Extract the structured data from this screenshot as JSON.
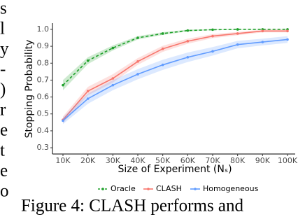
{
  "margin_fragments": [
    "s",
    "l",
    "y",
    "-",
    ")",
    "r",
    "e",
    "t",
    "e",
    "o"
  ],
  "caption": "Figure 4:  CLASH performs and",
  "chart_data": {
    "type": "line",
    "xlabel": "Size of Experiment (Nₛ)",
    "ylabel": "Stopping Probability",
    "categories": [
      "10K",
      "20K",
      "30K",
      "40K",
      "50K",
      "60K",
      "70K",
      "80K",
      "90K",
      "100K"
    ],
    "ylim": [
      0.263,
      1.037
    ],
    "yticks": [
      0.3,
      0.4,
      0.5,
      0.6,
      0.7,
      0.8,
      0.9,
      {
        "value": 1,
        "label": "1.0"
      }
    ],
    "legend": "bottom",
    "series": [
      {
        "name": "Oracle",
        "color": "#1ea02a",
        "dashed": true,
        "values": [
          0.67,
          0.815,
          0.89,
          0.95,
          0.975,
          0.993,
          0.998,
          1.0,
          1.0,
          1.0
        ],
        "ci": [
          0.03,
          0.02,
          0.015,
          0.01,
          0.008,
          0.005,
          0.003,
          0.002,
          0.002,
          0.002
        ]
      },
      {
        "name": "CLASH",
        "color": "#f8766d",
        "dashed": false,
        "values": [
          0.465,
          0.635,
          0.71,
          0.81,
          0.885,
          0.93,
          0.96,
          0.975,
          0.99,
          0.99
        ],
        "ci": [
          0.02,
          0.025,
          0.025,
          0.02,
          0.018,
          0.015,
          0.012,
          0.01,
          0.008,
          0.008
        ]
      },
      {
        "name": "Homogeneous",
        "color": "#619cff",
        "dashed": false,
        "values": [
          0.46,
          0.59,
          0.67,
          0.735,
          0.79,
          0.835,
          0.87,
          0.91,
          0.925,
          0.94
        ],
        "ci": [
          0.02,
          0.03,
          0.03,
          0.03,
          0.03,
          0.028,
          0.025,
          0.022,
          0.02,
          0.02
        ]
      }
    ]
  }
}
